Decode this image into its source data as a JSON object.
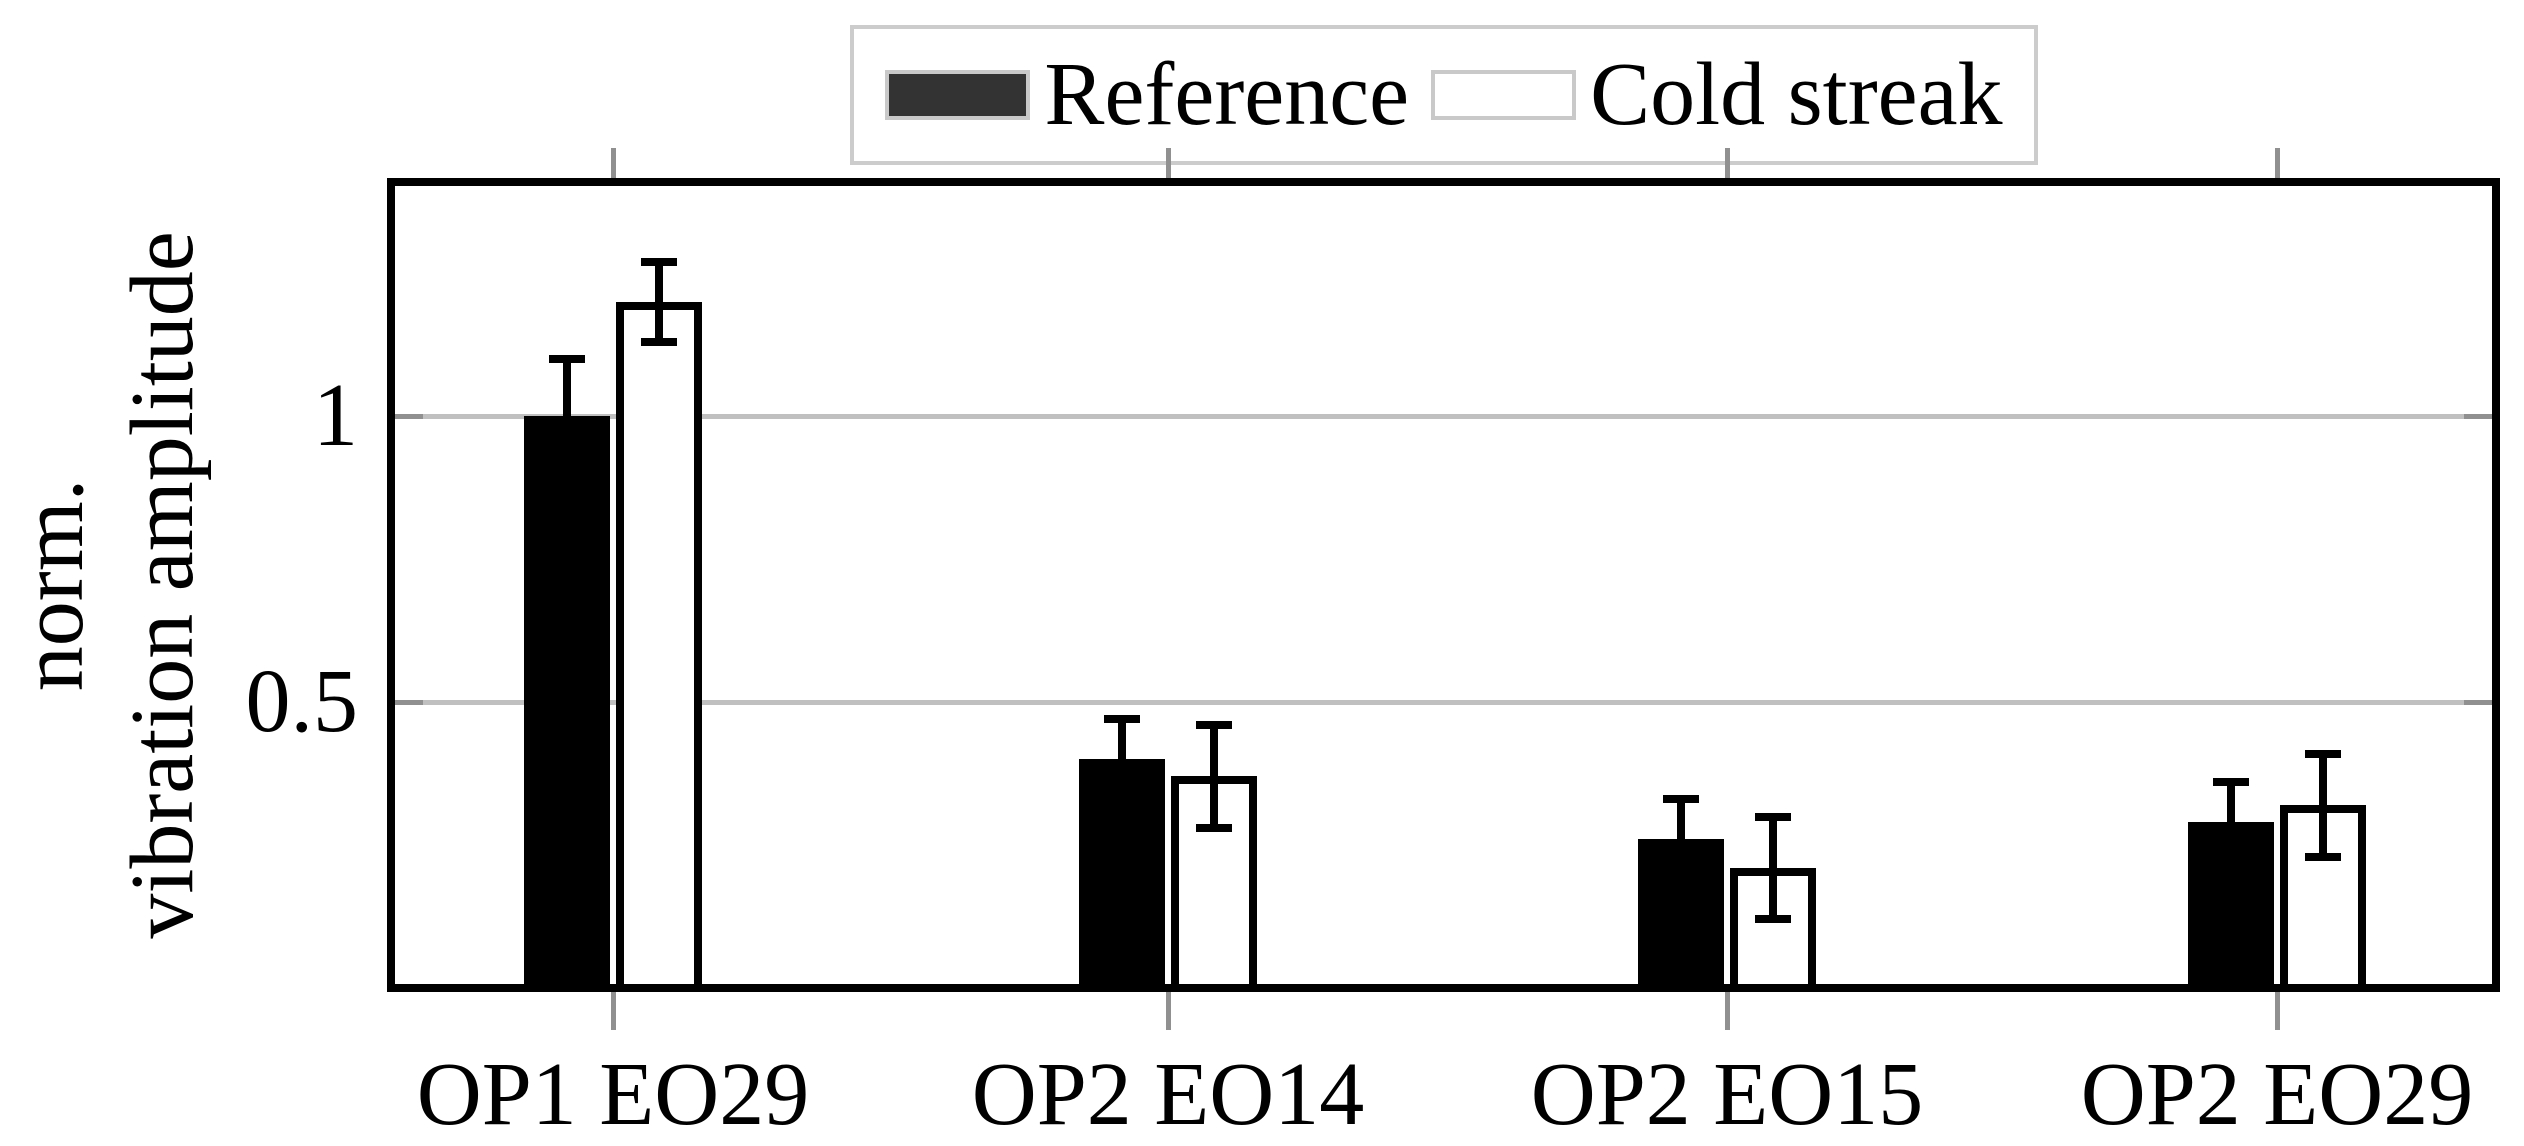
{
  "chart_data": {
    "type": "bar",
    "title": "",
    "categories": [
      "OP1 EO29",
      "OP2 EO14",
      "OP2 EO15",
      "OP2 EO29"
    ],
    "series": [
      {
        "name": "Reference",
        "fill": "#000000",
        "edge": "#000000",
        "values": [
          1.0,
          0.4,
          0.26,
          0.29
        ],
        "errors": [
          0.1,
          0.07,
          0.07,
          0.07
        ]
      },
      {
        "name": "Cold streak",
        "fill": "#ffffff",
        "edge": "#000000",
        "values": [
          1.2,
          0.37,
          0.21,
          0.32
        ],
        "errors": [
          0.07,
          0.09,
          0.09,
          0.09
        ]
      }
    ],
    "ylabel_line1": "norm.",
    "ylabel_line2": "vibration amplitude",
    "xlabel": "",
    "yticks": [
      {
        "value": 0.5,
        "label": "0.5"
      },
      {
        "value": 1.0,
        "label": "1"
      }
    ],
    "ylim": [
      0,
      1.41
    ],
    "grid": "horizontal",
    "error_bars": "symmetric, cap style",
    "legend_position": "top-center",
    "colors": {
      "bar_reference": "#000000",
      "bar_cold_streak": "#ffffff",
      "bar_edge": "#000000",
      "gridline": "#c0c0c0",
      "tick": "#909090",
      "axis_frame": "#000000",
      "legend_border": "#cccccc",
      "legend_swatch_reference_fill": "#333333",
      "legend_swatch_border": "#c9c9c9",
      "background": "#ffffff"
    }
  }
}
